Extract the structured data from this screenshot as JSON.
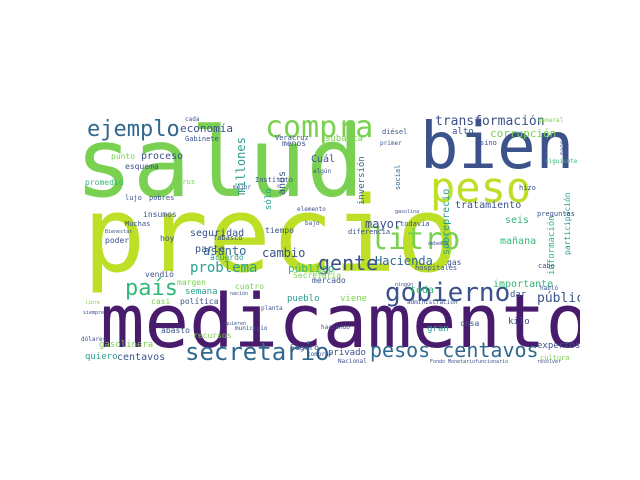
{
  "palette": {
    "yellow_green": "#bddf26",
    "green": "#7ad151",
    "teal": "#2a9d8e",
    "blue": "#3b528b",
    "dark_purple": "#481b6d",
    "steel": "#31688e",
    "seagreen": "#35b779"
  },
  "words": [
    {
      "text": "salud",
      "color": "#7ad151"
    },
    {
      "text": "precio",
      "color": "#bddf26"
    },
    {
      "text": "medicamento",
      "color": "#481b6d"
    },
    {
      "text": "bien",
      "color": "#3b528b"
    },
    {
      "text": "peso",
      "color": "#bddf26"
    },
    {
      "text": "compra",
      "color": "#7ad151"
    },
    {
      "text": "litro",
      "color": "#7ad151"
    },
    {
      "text": "gobierno",
      "color": "#3b528b"
    },
    {
      "text": "secretario",
      "color": "#31688e"
    },
    {
      "text": "pesos centavos",
      "color": "#31688e"
    },
    {
      "text": "ejemplo",
      "color": "#31688e"
    },
    {
      "text": "país",
      "color": "#35b779"
    },
    {
      "text": "gente",
      "color": "#3b528b"
    },
    {
      "text": "transformación",
      "color": "#3b528b"
    },
    {
      "text": "problema",
      "color": "#2a9d8e"
    },
    {
      "text": "millones",
      "color": "#2a9d8e"
    },
    {
      "text": "Hacienda",
      "color": "#31688e"
    },
    {
      "text": "mayor",
      "color": "#3b528b"
    },
    {
      "text": "pública",
      "color": "#3b528b"
    },
    {
      "text": "economía",
      "color": "#3b528b"
    },
    {
      "text": "corrupción",
      "color": "#7ad151"
    },
    {
      "text": "cambio",
      "color": "#3b528b"
    },
    {
      "text": "asunto",
      "color": "#31688e"
    },
    {
      "text": "público",
      "color": "#35b779"
    },
    {
      "text": "centavos",
      "color": "#3b528b"
    },
    {
      "text": "sobreprecio",
      "color": "#2a9d8e"
    },
    {
      "text": "tratamiento",
      "color": "#3b528b"
    },
    {
      "text": "importante",
      "color": "#35b779"
    },
    {
      "text": "seguridad",
      "color": "#3b528b"
    },
    {
      "text": "proceso",
      "color": "#3b528b"
    },
    {
      "text": "seis",
      "color": "#35b779"
    },
    {
      "text": "toda",
      "color": "#35b779"
    },
    {
      "text": "mañana",
      "color": "#35b779"
    },
    {
      "text": "parte",
      "color": "#3b528b"
    },
    {
      "text": "años",
      "color": "#3b528b"
    },
    {
      "text": "Cuál",
      "color": "#3b528b"
    },
    {
      "text": "inversión",
      "color": "#31688e"
    },
    {
      "text": "alto",
      "color": "#3b528b"
    },
    {
      "text": "quiero",
      "color": "#2a9d8e"
    },
    {
      "text": "gasolinera",
      "color": "#7ad151"
    },
    {
      "text": "privado",
      "color": "#3b528b"
    },
    {
      "text": "expertos",
      "color": "#3b528b"
    },
    {
      "text": "gran",
      "color": "#2a9d8e"
    },
    {
      "text": "kilo",
      "color": "#3b528b"
    },
    {
      "text": "semana",
      "color": "#2a9d8e"
    },
    {
      "text": "pueblo",
      "color": "#2a9d8e"
    },
    {
      "text": "viene",
      "color": "#7ad151"
    },
    {
      "text": "dar",
      "color": "#3b528b"
    },
    {
      "text": "subasta",
      "color": "#7ad151"
    },
    {
      "text": "sólo",
      "color": "#2a9d8e"
    },
    {
      "text": "información",
      "color": "#35b779"
    },
    {
      "text": "participación",
      "color": "#2a9d8e"
    },
    {
      "text": "insumos",
      "color": "#3b528b"
    },
    {
      "text": "tiempo",
      "color": "#3b528b"
    },
    {
      "text": "Secretaría",
      "color": "#7ad151"
    },
    {
      "text": "mercado",
      "color": "#3b528b"
    },
    {
      "text": "Seguro",
      "color": "#3b528b"
    },
    {
      "text": "promedio",
      "color": "#35b779"
    },
    {
      "text": "esquema",
      "color": "#3b528b"
    },
    {
      "text": "punto",
      "color": "#7ad151"
    },
    {
      "text": "poder",
      "color": "#3b528b"
    },
    {
      "text": "hoy",
      "color": "#3b528b"
    },
    {
      "text": "Tabasco",
      "color": "#3b528b"
    },
    {
      "text": "acuerdo",
      "color": "#2a9d8e"
    },
    {
      "text": "margen",
      "color": "#7ad151"
    },
    {
      "text": "cuatro",
      "color": "#7ad151"
    },
    {
      "text": "vendió",
      "color": "#3b528b"
    },
    {
      "text": "abasto",
      "color": "#3b528b"
    },
    {
      "text": "política",
      "color": "#3b528b"
    },
    {
      "text": "casi",
      "color": "#7ad151"
    },
    {
      "text": "recursos",
      "color": "#7ad151"
    },
    {
      "text": "gas",
      "color": "#3b528b"
    },
    {
      "text": "cosa",
      "color": "#3b528b"
    },
    {
      "text": "menos",
      "color": "#3b528b"
    },
    {
      "text": "diésel",
      "color": "#3b528b"
    },
    {
      "text": "todavía",
      "color": "#3b528b"
    },
    {
      "text": "cultura",
      "color": "#7ad151"
    },
    {
      "text": "Gabinete",
      "color": "#3b528b"
    },
    {
      "text": "Instituto",
      "color": "#3b528b"
    },
    {
      "text": "Veracruz",
      "color": "#3b528b"
    },
    {
      "text": "diferencia",
      "color": "#3b528b"
    },
    {
      "text": "hospitales",
      "color": "#3b528b"
    },
    {
      "text": "preguntas",
      "color": "#3b528b"
    },
    {
      "text": "hizo",
      "color": "#3b528b"
    },
    {
      "text": "social",
      "color": "#31688e"
    },
    {
      "text": "cabo",
      "color": "#3b528b"
    },
    {
      "text": "sino",
      "color": "#3b528b"
    },
    {
      "text": "Muchas",
      "color": "#3b528b"
    },
    {
      "text": "lujo",
      "color": "#3b528b"
    },
    {
      "text": "pobres",
      "color": "#3b528b"
    },
    {
      "text": "virus",
      "color": "#7ad151"
    },
    {
      "text": "nación",
      "color": "#3b528b"
    },
    {
      "text": "haciendo",
      "color": "#3b528b"
    },
    {
      "text": "municipio",
      "color": "#3b528b"
    },
    {
      "text": "planta",
      "color": "#3b528b"
    },
    {
      "text": "administración",
      "color": "#3b528b"
    },
    {
      "text": "Nacional",
      "color": "#3b528b"
    },
    {
      "text": "comprar",
      "color": "#3b528b"
    },
    {
      "text": "dólares",
      "color": "#3b528b"
    },
    {
      "text": "elemento",
      "color": "#3b528b"
    },
    {
      "text": "algún",
      "color": "#3b528b"
    },
    {
      "text": "ingrar",
      "color": "#7ad151"
    },
    {
      "text": "bajo",
      "color": "#3b528b"
    },
    {
      "text": "mejor",
      "color": "#3b528b"
    },
    {
      "text": "cada",
      "color": "#3b528b"
    },
    {
      "text": "primer",
      "color": "#3b528b"
    },
    {
      "text": "siguiente",
      "color": "#35b779"
    },
    {
      "text": "general",
      "color": "#7ad151"
    },
    {
      "text": "manera",
      "color": "#3b528b"
    },
    {
      "text": "habló",
      "color": "#3b528b"
    },
    {
      "text": "resolver",
      "color": "#3b528b"
    },
    {
      "text": "Fondo Monetario",
      "color": "#3b528b"
    },
    {
      "text": "funcionario",
      "color": "#3b528b"
    },
    {
      "text": "Bienestar",
      "color": "#3b528b"
    },
    {
      "text": "quieren",
      "color": "#3b528b"
    },
    {
      "text": "libre",
      "color": "#7ad151"
    },
    {
      "text": "gasolina",
      "color": "#3b528b"
    },
    {
      "text": "ningún",
      "color": "#3b528b"
    },
    {
      "text": "debemos",
      "color": "#3b528b"
    },
    {
      "text": "siempre",
      "color": "#3b528b"
    }
  ]
}
